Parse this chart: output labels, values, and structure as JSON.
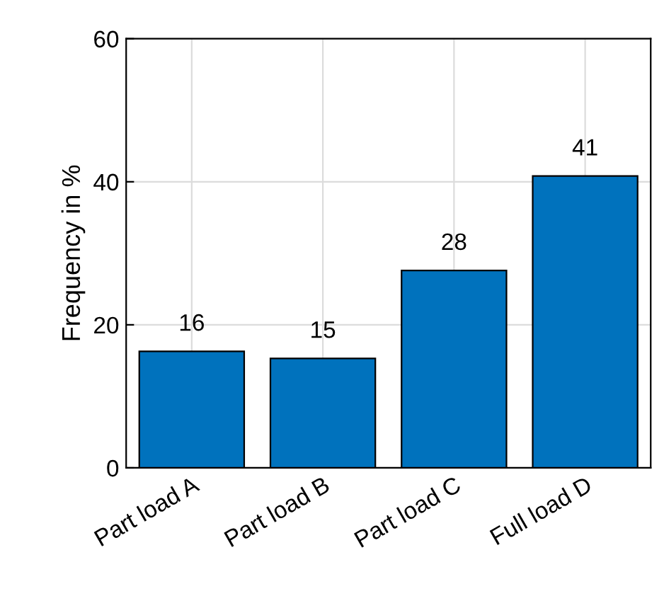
{
  "chart_data": {
    "type": "bar",
    "ylabel": "Frequency in %",
    "categories": [
      "Part load A",
      "Part load B",
      "Part load C",
      "Full load D"
    ],
    "values": [
      16.3,
      15.3,
      27.6,
      40.8
    ],
    "value_labels": [
      "16",
      "15",
      "28",
      "41"
    ],
    "color": "#0072bd",
    "ylim": [
      0,
      60
    ],
    "yticks": [
      0,
      20,
      40,
      60
    ],
    "grid": true
  }
}
